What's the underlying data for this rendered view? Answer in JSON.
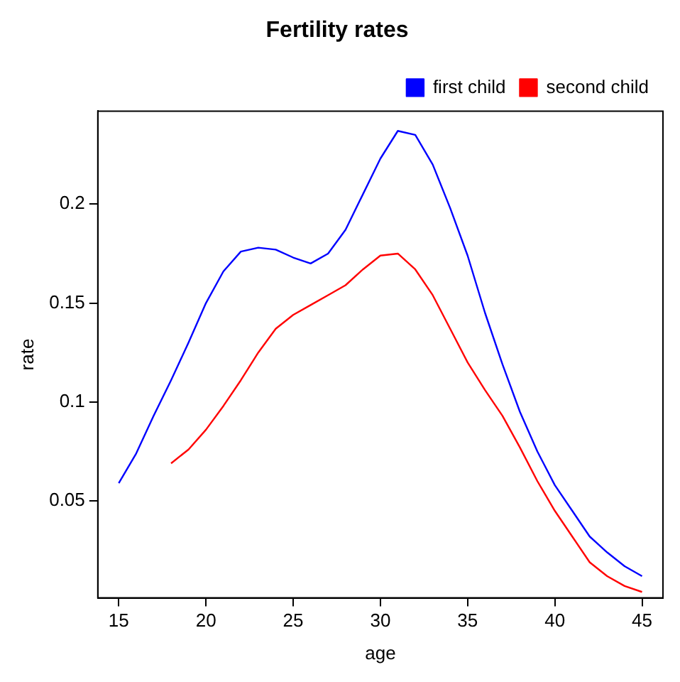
{
  "chart_data": {
    "type": "line",
    "title": "Fertility rates",
    "xlabel": "age",
    "ylabel": "rate",
    "xlim": [
      13.8,
      46.2
    ],
    "ylim": [
      0.001,
      0.247
    ],
    "xticks": [
      15,
      20,
      25,
      30,
      35,
      40,
      45
    ],
    "yticks": [
      0.05,
      0.1,
      0.15,
      0.2
    ],
    "grid": false,
    "legend": "top right",
    "marker": "none",
    "line_style": "solid",
    "series": [
      {
        "name": "first child",
        "color": "#0000ff",
        "x": [
          15,
          16,
          17,
          18,
          19,
          20,
          21,
          22,
          23,
          24,
          25,
          26,
          27,
          28,
          29,
          30,
          31,
          32,
          33,
          34,
          35,
          36,
          37,
          38,
          39,
          40,
          41,
          42,
          43,
          44,
          45
        ],
        "values": [
          0.059,
          0.074,
          0.093,
          0.111,
          0.13,
          0.15,
          0.166,
          0.176,
          0.178,
          0.177,
          0.173,
          0.17,
          0.175,
          0.187,
          0.205,
          0.223,
          0.237,
          0.235,
          0.22,
          0.198,
          0.174,
          0.145,
          0.119,
          0.095,
          0.075,
          0.058,
          0.045,
          0.032,
          0.024,
          0.017,
          0.012
        ]
      },
      {
        "name": "second child",
        "color": "#ff0000",
        "x": [
          18,
          19,
          20,
          21,
          22,
          23,
          24,
          25,
          26,
          27,
          28,
          29,
          30,
          31,
          32,
          33,
          34,
          35,
          36,
          37,
          38,
          39,
          40,
          41,
          42,
          43,
          44,
          45
        ],
        "values": [
          0.069,
          0.076,
          0.086,
          0.098,
          0.111,
          0.125,
          0.137,
          0.144,
          0.149,
          0.154,
          0.159,
          0.167,
          0.174,
          0.175,
          0.167,
          0.154,
          0.137,
          0.12,
          0.106,
          0.093,
          0.077,
          0.06,
          0.045,
          0.032,
          0.019,
          0.012,
          0.007,
          0.004
        ]
      }
    ]
  }
}
